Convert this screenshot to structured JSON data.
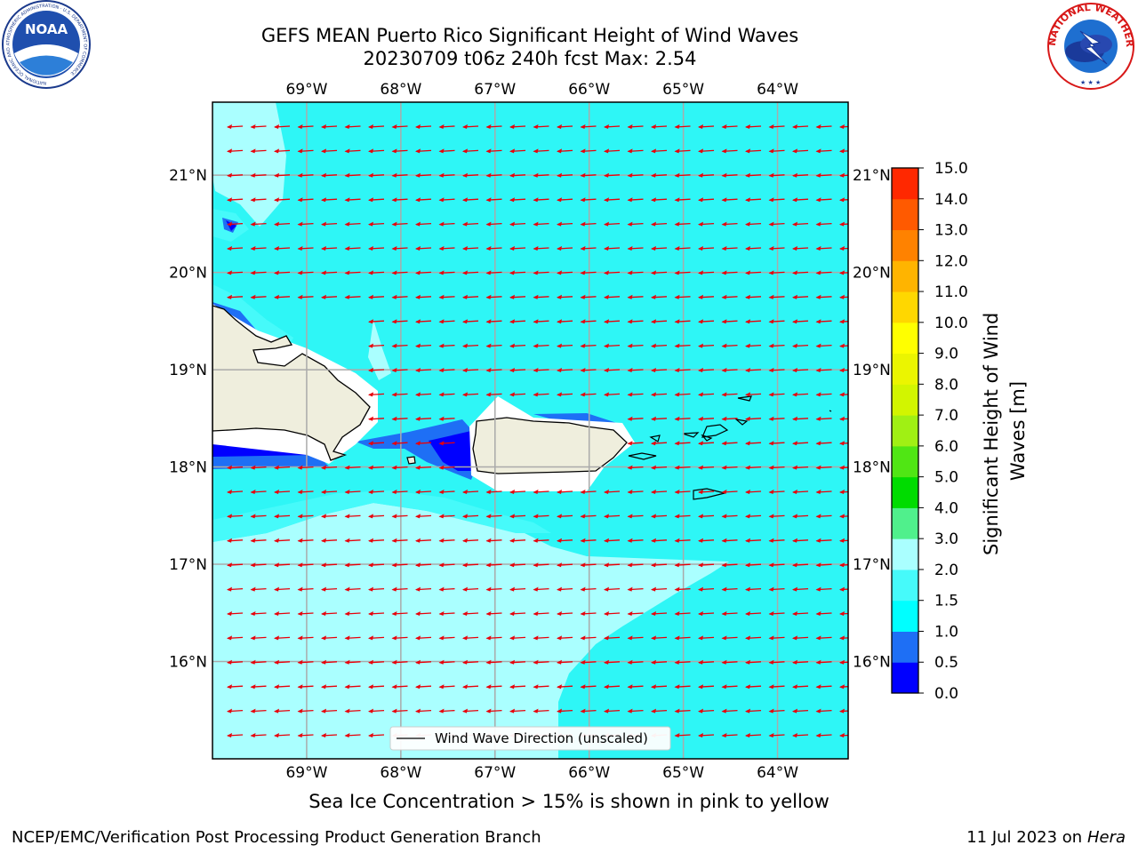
{
  "header": {
    "title_line1": "GEFS MEAN Puerto Rico Significant Height of Wind Waves",
    "title_line2": "20230709 t06z 240h fcst   Max: 2.54"
  },
  "logos": {
    "noaa_text": "NOAA",
    "noaa_ring_text": "NATIONAL OCEANIC AND ATMOSPHERIC ADMINISTRATION · U.S. DEPARTMENT OF COMMERCE",
    "nws_ring_text": "NATIONAL WEATHER SERVICE"
  },
  "map": {
    "lon_range": [
      -70.0,
      -63.25
    ],
    "lat_range": [
      15.0,
      21.75
    ],
    "lon_ticks": [
      "69°W",
      "68°W",
      "67°W",
      "66°W",
      "65°W",
      "64°W"
    ],
    "lat_ticks": [
      "21°N",
      "20°N",
      "19°N",
      "18°N",
      "17°N",
      "16°N"
    ],
    "grid": true,
    "legend_label": "Wind Wave Direction (unscaled)",
    "legend_position": "bottom-center",
    "arrow_direction": "westward",
    "land_color": "#efeedd",
    "ocean_base_color": "#2ef6f6"
  },
  "colorbar": {
    "label": "Significant Height of Wind Waves [m]",
    "levels": [
      "0.0",
      "0.5",
      "1.0",
      "1.5",
      "2.0",
      "3.0",
      "4.0",
      "5.0",
      "6.0",
      "7.0",
      "8.0",
      "9.0",
      "10.0",
      "11.0",
      "12.0",
      "13.0",
      "14.0",
      "15.0"
    ],
    "colors": [
      "#0000ff",
      "#1e6ff5",
      "#00ffff",
      "#46fafa",
      "#aaffff",
      "#50f08c",
      "#00dc00",
      "#50e614",
      "#a0f014",
      "#d2f500",
      "#ebf500",
      "#ffff00",
      "#ffd700",
      "#ffb400",
      "#ff8200",
      "#ff5a00",
      "#ff2800",
      "#ff0000"
    ]
  },
  "chart_data": {
    "type": "heatmap",
    "title": "GEFS MEAN Puerto Rico Significant Height of Wind Waves",
    "subtitle": "20230709 t06z 240h fcst   Max: 2.54",
    "variable": "Significant Height of Wind Waves [m]",
    "max": 2.54,
    "xlim": [
      -70.0,
      -63.25
    ],
    "ylim": [
      15.0,
      21.75
    ]
  },
  "footer": {
    "note": "Sea Ice Concentration > 15% is shown in pink to yellow",
    "left": "NCEP/EMC/Verification Post Processing Product Generation Branch",
    "right_prefix": "11 Jul 2023 on ",
    "right_host": "Hera"
  }
}
